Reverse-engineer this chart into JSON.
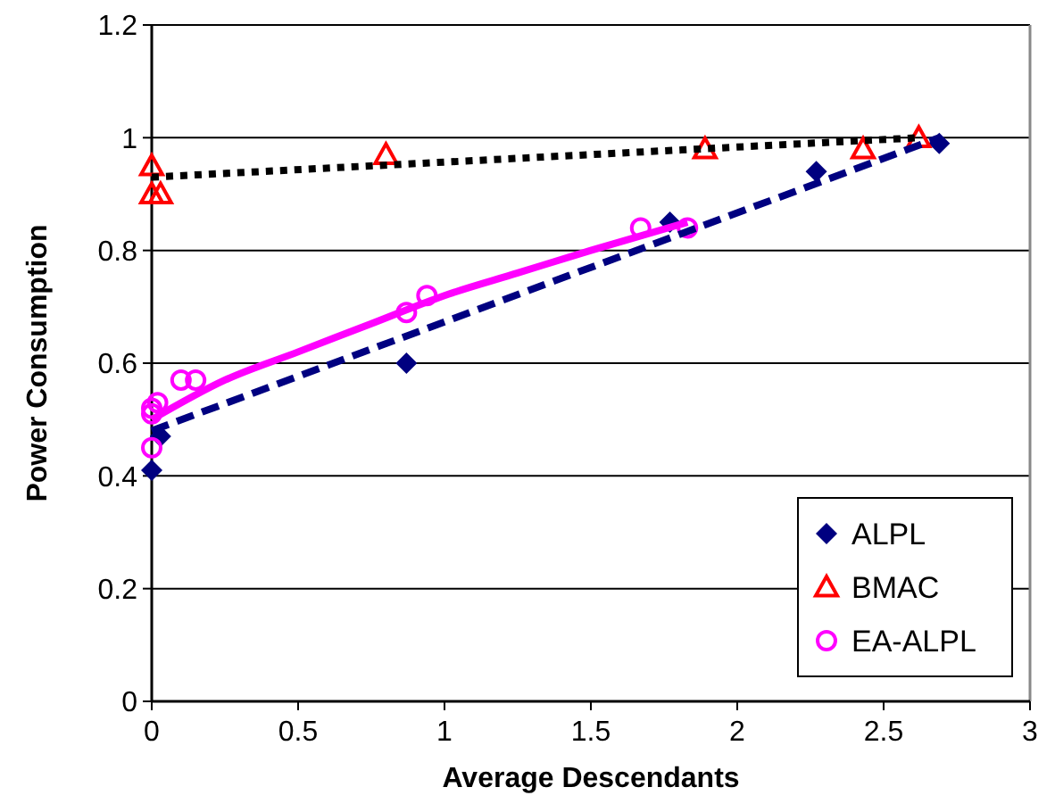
{
  "chart_data": {
    "type": "scatter",
    "xlabel": "Average Descendants",
    "ylabel": "Power Consumption",
    "xlim": [
      0,
      3
    ],
    "ylim": [
      0,
      1.2
    ],
    "xticks": [
      0,
      0.5,
      1,
      1.5,
      2,
      2.5,
      3
    ],
    "yticks": [
      0,
      0.2,
      0.4,
      0.6,
      0.8,
      1,
      1.2
    ],
    "grid": "y",
    "legend": "bottom right",
    "series": [
      {
        "name": "ALPL",
        "color": "#000080",
        "marker": "diamond",
        "x": [
          0,
          0.03,
          0.87,
          1.77,
          2.27,
          2.69
        ],
        "values": [
          0.41,
          0.47,
          0.6,
          0.85,
          0.94,
          0.99
        ]
      },
      {
        "name": "BMAC",
        "color": "#ff0000",
        "marker": "triangle",
        "x": [
          0,
          0,
          0.03,
          0.8,
          1.89,
          2.43,
          2.62
        ],
        "values": [
          0.95,
          0.9,
          0.9,
          0.97,
          0.98,
          0.98,
          1.0
        ]
      },
      {
        "name": "EA-ALPL",
        "color": "#ff00ff",
        "marker": "circle",
        "x": [
          0,
          0,
          0.02,
          0,
          0.1,
          0.15,
          0.87,
          0.94,
          1.67,
          1.83
        ],
        "values": [
          0.45,
          0.51,
          0.53,
          0.52,
          0.57,
          0.57,
          0.69,
          0.72,
          0.84,
          0.84
        ]
      },
      {
        "type": "line",
        "color": "#000080",
        "marker": "none",
        "line_style": "dashed",
        "x": [
          0,
          2.69
        ],
        "values": [
          0.48,
          1.0
        ]
      },
      {
        "type": "line",
        "color": "#000000",
        "marker": "none",
        "line_style": "dotted",
        "x": [
          0,
          2.62
        ],
        "values": [
          0.93,
          1.0
        ]
      },
      {
        "type": "line",
        "color": "#ff00ff",
        "marker": "none",
        "line_style": "solid",
        "x": [
          0,
          0.25,
          0.5,
          0.75,
          1,
          1.25,
          1.5,
          1.83
        ],
        "values": [
          0.5,
          0.57,
          0.62,
          0.67,
          0.72,
          0.76,
          0.8,
          0.85
        ]
      }
    ]
  }
}
